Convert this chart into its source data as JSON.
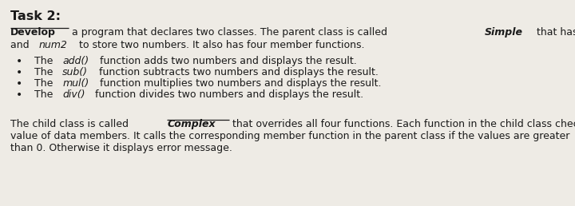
{
  "bg_color": "#eeebe5",
  "title": "Task 2:",
  "title_fontsize": 11.5,
  "bullets": [
    {
      "prefix": "The ",
      "italic": "add()",
      "suffix": " function adds two numbers and displays the result."
    },
    {
      "prefix": "The ",
      "italic": "sub()",
      "suffix": " function subtracts two numbers and displays the result."
    },
    {
      "prefix": "The ",
      "italic": "mul()",
      "suffix": " function multiplies two numbers and displays the result."
    },
    {
      "prefix": "The ",
      "italic": "div()",
      "suffix": " function divides two numbers and displays the result."
    }
  ],
  "para2_line2": "value of data members. It calls the corresponding member function in the parent class if the values are greater",
  "para2_line3": "than 0. Otherwise it displays error message.",
  "font_size": 9.0,
  "text_color": "#1a1a1a"
}
